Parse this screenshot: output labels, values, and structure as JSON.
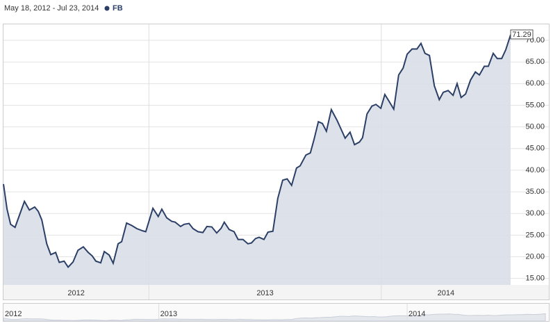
{
  "chart_data": {
    "type": "area",
    "subtitle": "May 18, 2012 - Jul 23, 2014",
    "series": [
      {
        "name": "FB",
        "color": "#2b3f66",
        "x": [
          0,
          0.8,
          1.6,
          2.6,
          4.7,
          5.8,
          7.0,
          7.8,
          8.6,
          9.7,
          10.6,
          11.7,
          12.5,
          13.6,
          14.5,
          15.6,
          16.7,
          17.9,
          19.0,
          19.9,
          20.7,
          21.8,
          22.6,
          23.7,
          24.6,
          25.7,
          26.5,
          27.6,
          28.8,
          29.9,
          31.2,
          31.9,
          33.5,
          34.7,
          35.5,
          36.6,
          37.7,
          38.5,
          39.7,
          40.5,
          41.6,
          42.5,
          43.6,
          44.7,
          45.6,
          46.7,
          47.8,
          48.8,
          49.5,
          50.6,
          51.7,
          52.6,
          53.7,
          54.8,
          55.6,
          56.5,
          57.3,
          58.4,
          59.3,
          60.4,
          61.5,
          62.6,
          63.6,
          64.6,
          65.7,
          66.5,
          67.8,
          68.8,
          69.6,
          70.6,
          71.5,
          72.4,
          73.5,
          74.8,
          75.9,
          76.6,
          77.7,
          78.7,
          79.8,
          80.5,
          81.5,
          82.6,
          83.5,
          84.6,
          85.5,
          86.4,
          87.5,
          88.6,
          89.6,
          90.5,
          91.6,
          92.7,
          93.6,
          94.5,
          95.5,
          96.6,
          97.7,
          98.6,
          99.7,
          100.8,
          101.7,
          102.6,
          103.6,
          104.7,
          105.8,
          106.7,
          107.8,
          108.7,
          109.8,
          110.7,
          111.7,
          112.6,
          113.7
        ],
        "values": [
          36.8,
          31,
          27.5,
          26.8,
          32.8,
          30.8,
          31.5,
          30.5,
          28.5,
          23,
          20.5,
          21,
          18.7,
          19,
          17.6,
          18.8,
          21.5,
          22.3,
          21,
          20.2,
          19,
          18.6,
          21.2,
          20.4,
          18.5,
          23,
          23.5,
          27.8,
          27.2,
          26.5,
          26,
          25.8,
          31.2,
          29.3,
          31,
          29,
          28.2,
          28,
          27,
          27.5,
          27.7,
          26.5,
          25.8,
          25.6,
          27,
          26.9,
          25.5,
          26.6,
          28,
          26.3,
          25.8,
          24,
          24,
          23,
          23.2,
          24.2,
          24.5,
          24,
          25.7,
          25.9,
          33.5,
          37.7,
          38,
          36.5,
          40.5,
          41,
          43.5,
          44,
          47,
          51.2,
          50.8,
          49,
          54,
          51.5,
          49,
          47.4,
          48.8,
          45.9,
          46.5,
          47.5,
          53,
          54.8,
          55.2,
          54.3,
          57.5,
          56,
          54.1,
          62,
          63.6,
          66.8,
          68,
          68,
          69.3,
          67,
          66.5,
          59.5,
          56.3,
          58,
          58.4,
          57.3,
          60,
          56.8,
          57.6,
          60.8,
          62.7,
          62,
          64,
          64,
          67,
          65.8,
          65.8,
          67.8,
          71.29
        ]
      }
    ],
    "xlim": [
      0,
      113.7
    ],
    "x_band_edges": [
      32.6,
      84.7
    ],
    "x_bands": [
      "2012",
      "2013",
      "2014"
    ],
    "ylim": [
      13.5,
      73.7
    ],
    "yticks": [
      {
        "value": 15,
        "label": "15.00"
      },
      {
        "value": 20,
        "label": "20.00"
      },
      {
        "value": 25,
        "label": "25.00"
      },
      {
        "value": 30,
        "label": "30.00"
      },
      {
        "value": 35,
        "label": "35.00"
      },
      {
        "value": 40,
        "label": "40.00"
      },
      {
        "value": 45,
        "label": "45.00"
      },
      {
        "value": 50,
        "label": "50.00"
      },
      {
        "value": 55,
        "label": "55.00"
      },
      {
        "value": 60,
        "label": "60.00"
      },
      {
        "value": 65,
        "label": "65.00"
      },
      {
        "value": 70,
        "label": "70.00"
      }
    ],
    "grid": true
  }
}
